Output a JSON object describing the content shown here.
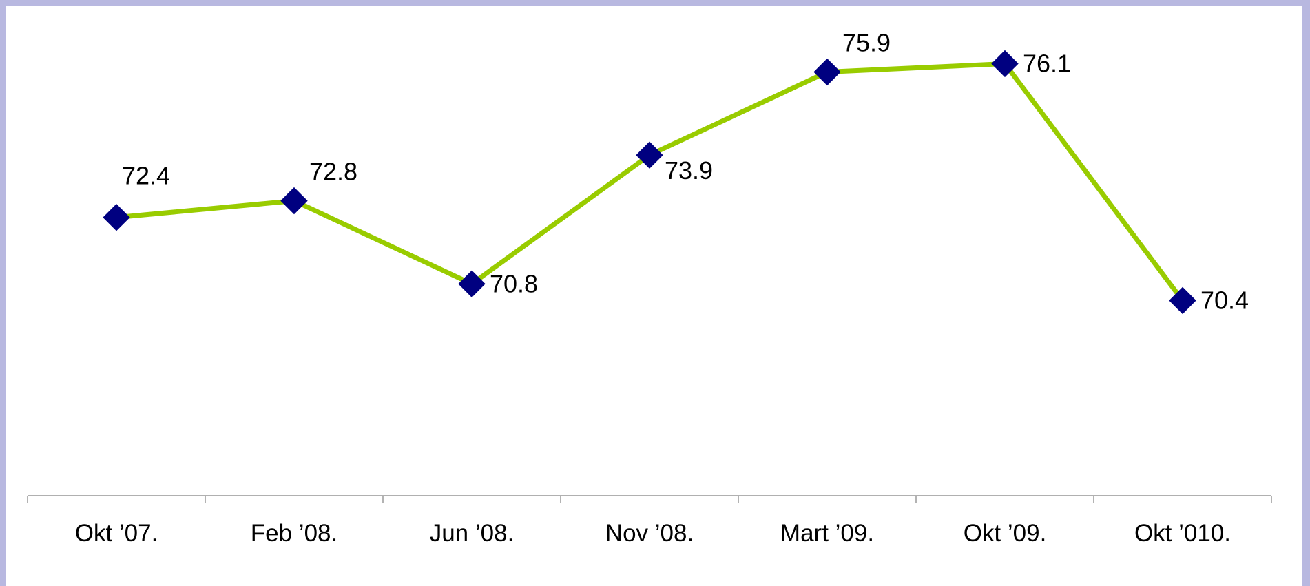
{
  "colors": {
    "page_background": "#b8b8e0",
    "plot_background": "#ffffff",
    "line": "#99cc00",
    "marker": "#000080",
    "axis": "#808080",
    "text": "#000000"
  },
  "chart_data": {
    "type": "line",
    "title": "",
    "xlabel": "",
    "ylabel": "",
    "categories": [
      "Okt ’07.",
      "Feb ’08.",
      "Jun ’08.",
      "Nov ’08.",
      "Mart ’09.",
      "Okt ’09.",
      "Okt ’010."
    ],
    "series": [
      {
        "values": [
          72.4,
          72.8,
          70.8,
          73.9,
          75.9,
          76.1,
          70.4
        ],
        "data_labels": [
          "72.4",
          "72.8",
          "70.8",
          "73.9",
          "75.9",
          "76.1",
          "70.4"
        ],
        "label_positions": [
          "above",
          "above-right",
          "right",
          "below-right",
          "above-right",
          "right",
          "right"
        ],
        "marker": "diamond"
      }
    ],
    "ylim": [
      65.7,
      77.5
    ],
    "y_axis_visible": false,
    "grid": false,
    "legend": "none"
  }
}
